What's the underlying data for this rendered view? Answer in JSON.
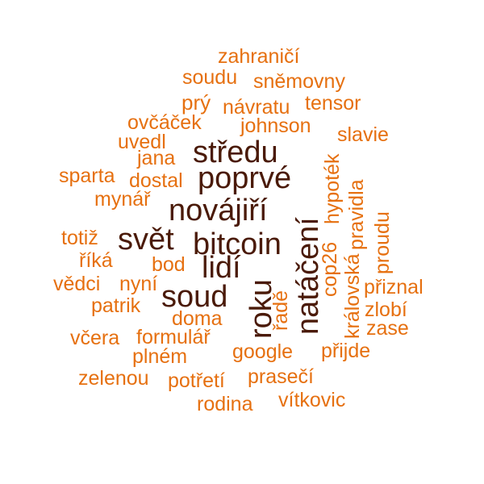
{
  "word_cloud": {
    "colors": {
      "light": "#e67010",
      "medium": "#b54808",
      "dark": "#4a1a08"
    },
    "words": {
      "zahranici": "zahraničí",
      "soudu": "soudu",
      "snemovny": "sněmovny",
      "pry": "prý",
      "navratu": "návratu",
      "tensor": "tensor",
      "ovcacek": "ovčáček",
      "johnson": "johnson",
      "uvedl": "uvedl",
      "slavie": "slavie",
      "jana": "jana",
      "stredu": "středu",
      "sparta": "sparta",
      "dostal": "dostal",
      "poprve": "poprvé",
      "mynar": "mynář",
      "novajiri": "novájiří",
      "totiz": "totiž",
      "svet": "svět",
      "bitcoin": "bitcoin",
      "rika": "říká",
      "bod": "bod",
      "lidi": "lidí",
      "vedci": "vědci",
      "nyni": "nyní",
      "soud": "soud",
      "patrik": "patrik",
      "doma": "doma",
      "vcera": "včera",
      "formular": "formulář",
      "plnem": "plném",
      "google": "google",
      "prijde": "přijde",
      "zelenou": "zelenou",
      "potreti": "potřetí",
      "praseci": "prasečí",
      "rodina": "rodina",
      "vitkovic": "vítkovic",
      "priznal": "přiznal",
      "zlobi": "zlobí",
      "zase": "zase",
      "roku": "roku",
      "nataceni": "natáčení",
      "rade": "řadě",
      "cop26": "cop26",
      "hypotek": "hypoték",
      "kralovska": "královská",
      "pravidla": "pravidla",
      "proudu": "proudu"
    }
  }
}
